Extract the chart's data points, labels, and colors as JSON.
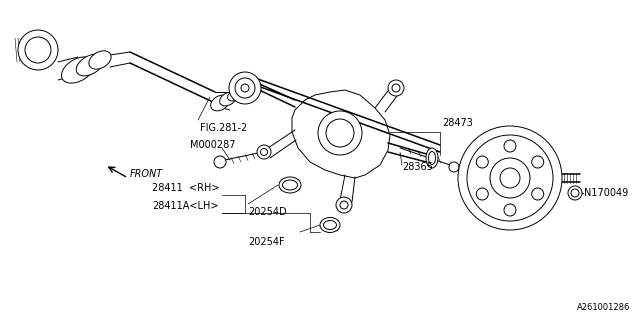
{
  "bg_color": "#ffffff",
  "fig_width": 6.4,
  "fig_height": 3.2,
  "dpi": 100,
  "labels": {
    "fig_ref": "FIG.281-2",
    "front": "FRONT",
    "m000287": "M000287",
    "p28411rh": "28411  <RH>",
    "p28411alh": "28411A<LH>",
    "p20254d": "20254D",
    "p20254f": "20254F",
    "p28473": "28473",
    "p28365": "28365",
    "n170049": "N170049",
    "ref_code": "A261001286"
  },
  "lw": 0.7,
  "lw_thick": 1.1,
  "lw_thin": 0.5,
  "fs": 7.0,
  "fs_ref": 6.0
}
